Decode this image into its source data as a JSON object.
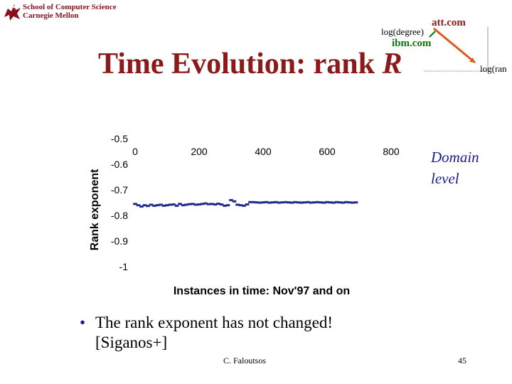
{
  "header": {
    "school_line1": "School of Computer Science",
    "school_line2": "Carnegie Mellon",
    "logo_icon": "griffin-logo-icon"
  },
  "slide": {
    "title": "Time Evolution: rank",
    "title_var": "R",
    "domain_line1": "Domain",
    "domain_line2": "level",
    "bullet": "The rank exponent has not changed!",
    "bullet_cont": "[Siganos+]",
    "author": "C. Faloutsos",
    "page_number": "45"
  },
  "inset": {
    "att_label": "att.com",
    "ibm_label": "ibm.com",
    "xlabel": "log(degree)",
    "ylabel": "log(ran"
  },
  "chart_data": {
    "type": "scatter",
    "xlabel": "Instances in time: Nov'97 and on",
    "ylabel": "Rank exponent",
    "xlim": [
      0,
      800
    ],
    "ylim": [
      -1,
      -0.5
    ],
    "xticks": [
      0,
      200,
      400,
      600,
      800
    ],
    "yticks": [
      -0.5,
      -0.6,
      -0.7,
      -0.8,
      -0.9,
      -1
    ],
    "ytick_labels": [
      "-0.5",
      "-0.6",
      "-0.7",
      "-0.8",
      "-0.9",
      "-1"
    ],
    "x_axis_position": "top",
    "series": [
      {
        "x": [
          0,
          10,
          20,
          30,
          40,
          50,
          60,
          70,
          80,
          90,
          100,
          110,
          120,
          130,
          140,
          150,
          160,
          170,
          180,
          190,
          200,
          210,
          220,
          230,
          240,
          250,
          260,
          270,
          280,
          290,
          300,
          310,
          320,
          330,
          340,
          350,
          360,
          370,
          380,
          390,
          400,
          410,
          420,
          430,
          440,
          450,
          460,
          470,
          480,
          490,
          500,
          510,
          520,
          530,
          540,
          550,
          560,
          570,
          580,
          590,
          600,
          610,
          620,
          630,
          640,
          650,
          660,
          670,
          680,
          690
        ],
        "y": [
          -0.755,
          -0.76,
          -0.765,
          -0.76,
          -0.763,
          -0.758,
          -0.762,
          -0.76,
          -0.758,
          -0.762,
          -0.76,
          -0.758,
          -0.757,
          -0.762,
          -0.755,
          -0.76,
          -0.758,
          -0.756,
          -0.755,
          -0.758,
          -0.757,
          -0.755,
          -0.753,
          -0.756,
          -0.755,
          -0.757,
          -0.754,
          -0.757,
          -0.762,
          -0.76,
          -0.74,
          -0.745,
          -0.758,
          -0.76,
          -0.762,
          -0.757,
          -0.748,
          -0.748,
          -0.749,
          -0.75,
          -0.749,
          -0.748,
          -0.75,
          -0.749,
          -0.748,
          -0.75,
          -0.749,
          -0.748,
          -0.749,
          -0.75,
          -0.748,
          -0.749,
          -0.75,
          -0.749,
          -0.748,
          -0.75,
          -0.749,
          -0.748,
          -0.749,
          -0.75,
          -0.748,
          -0.749,
          -0.75,
          -0.748,
          -0.749,
          -0.75,
          -0.748,
          -0.749,
          -0.75,
          -0.749
        ]
      }
    ],
    "marker_color": "#1f2a8a"
  }
}
